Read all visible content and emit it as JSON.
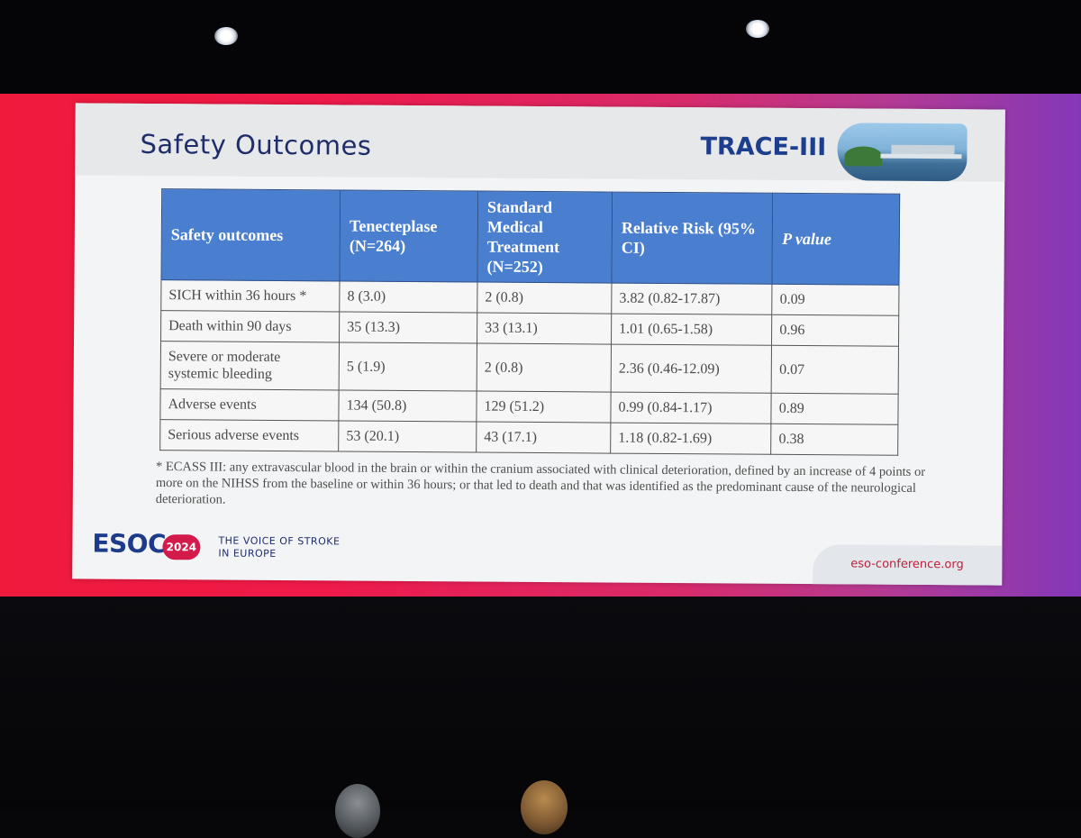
{
  "slide": {
    "title": "Safety Outcomes",
    "trial_logo_text": "TRACE-III",
    "table": {
      "headers": [
        "Safety outcomes",
        "Tenecteplase (N=264)",
        "Standard Medical Treatment (N=252)",
        "Relative Risk (95% CI)",
        "P value"
      ],
      "rows": [
        [
          "SICH within 36 hours *",
          "8 (3.0)",
          "2 (0.8)",
          "3.82 (0.82-17.87)",
          "0.09"
        ],
        [
          "Death within 90 days",
          "35 (13.3)",
          "33 (13.1)",
          "1.01 (0.65-1.58)",
          "0.96"
        ],
        [
          "Severe or moderate systemic bleeding",
          "5 (1.9)",
          "2 (0.8)",
          "2.36 (0.46-12.09)",
          "0.07"
        ],
        [
          "Adverse events",
          "134 (50.8)",
          "129 (51.2)",
          "0.99 (0.84-1.17)",
          "0.89"
        ],
        [
          "Serious adverse events",
          "53 (20.1)",
          "43 (17.1)",
          "1.18 (0.82-1.69)",
          "0.38"
        ]
      ]
    },
    "footnote": "* ECASS III: any extravascular blood in the brain or within the cranium associated with clinical deterioration, defined by an increase of 4 points or more on the NIHSS from the baseline or within 36 hours; or that led to death and that was identified as the predominant cause of the neurological deterioration.",
    "footer": {
      "logo_text": "ESOC",
      "logo_year": "2024",
      "tagline_line1": "THE VOICE OF STROKE",
      "tagline_line2": "IN EUROPE",
      "url": "eso-conference.org"
    }
  },
  "colors": {
    "table_header": "#4a7fd0",
    "title": "#1f2d6b",
    "screen_left": "#ef1a3c",
    "screen_right": "#8438b8"
  }
}
